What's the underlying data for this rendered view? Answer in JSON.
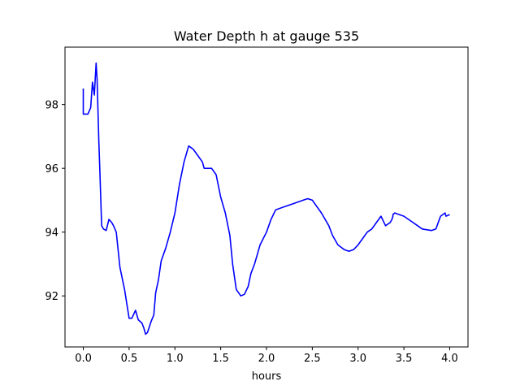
{
  "chart_data": {
    "type": "line",
    "title": "Water Depth h at gauge 535",
    "xlabel": "hours",
    "ylabel": "",
    "xlim": [
      -0.2,
      4.2
    ],
    "ylim": [
      90.4,
      99.8
    ],
    "xticks": [
      0.0,
      0.5,
      1.0,
      1.5,
      2.0,
      2.5,
      3.0,
      3.5,
      4.0
    ],
    "xtick_labels": [
      "0.0",
      "0.5",
      "1.0",
      "1.5",
      "2.0",
      "2.5",
      "3.0",
      "3.5",
      "4.0"
    ],
    "yticks": [
      92,
      94,
      96,
      98
    ],
    "ytick_labels": [
      "92",
      "94",
      "96",
      "98"
    ],
    "grid": false,
    "series": [
      {
        "color": "#0000ff",
        "x": [
          0.0,
          0.0,
          0.05,
          0.08,
          0.1,
          0.12,
          0.14,
          0.15,
          0.17,
          0.18,
          0.2,
          0.22,
          0.25,
          0.28,
          0.31,
          0.33,
          0.36,
          0.4,
          0.45,
          0.5,
          0.53,
          0.57,
          0.6,
          0.64,
          0.66,
          0.68,
          0.7,
          0.74,
          0.77,
          0.79,
          0.82,
          0.85,
          0.9,
          0.95,
          1.0,
          1.05,
          1.1,
          1.15,
          1.2,
          1.25,
          1.3,
          1.32,
          1.35,
          1.4,
          1.45,
          1.5,
          1.55,
          1.6,
          1.63,
          1.67,
          1.72,
          1.76,
          1.8,
          1.83,
          1.87,
          1.9,
          1.93,
          2.0,
          2.05,
          2.1,
          2.2,
          2.3,
          2.4,
          2.45,
          2.5,
          2.55,
          2.6,
          2.68,
          2.72,
          2.78,
          2.85,
          2.9,
          2.95,
          3.0,
          3.05,
          3.1,
          3.15,
          3.2,
          3.25,
          3.3,
          3.35,
          3.37,
          3.38,
          3.38,
          3.4,
          3.45,
          3.5,
          3.55,
          3.6,
          3.65,
          3.7,
          3.8,
          3.85,
          3.9,
          3.95,
          3.96,
          4.0
        ],
        "y": [
          98.5,
          97.7,
          97.7,
          97.9,
          98.7,
          98.3,
          99.3,
          98.8,
          96.8,
          96.0,
          94.2,
          94.1,
          94.05,
          94.4,
          94.3,
          94.2,
          94.0,
          92.9,
          92.2,
          91.3,
          91.3,
          91.55,
          91.25,
          91.15,
          91.0,
          90.8,
          90.85,
          91.2,
          91.4,
          92.1,
          92.5,
          93.1,
          93.5,
          94.0,
          94.6,
          95.5,
          96.2,
          96.7,
          96.6,
          96.4,
          96.2,
          96.0,
          96.0,
          96.0,
          95.8,
          95.1,
          94.6,
          93.9,
          93.0,
          92.2,
          92.0,
          92.05,
          92.3,
          92.7,
          93.0,
          93.3,
          93.6,
          94.0,
          94.4,
          94.7,
          94.8,
          94.9,
          95.0,
          95.05,
          95.0,
          94.8,
          94.6,
          94.2,
          93.9,
          93.6,
          93.45,
          93.4,
          93.45,
          93.6,
          93.8,
          94.0,
          94.1,
          94.3,
          94.5,
          94.2,
          94.3,
          94.4,
          94.5,
          94.55,
          94.6,
          94.55,
          94.5,
          94.4,
          94.3,
          94.2,
          94.1,
          94.05,
          94.1,
          94.5,
          94.6,
          94.5,
          94.55
        ]
      }
    ]
  }
}
